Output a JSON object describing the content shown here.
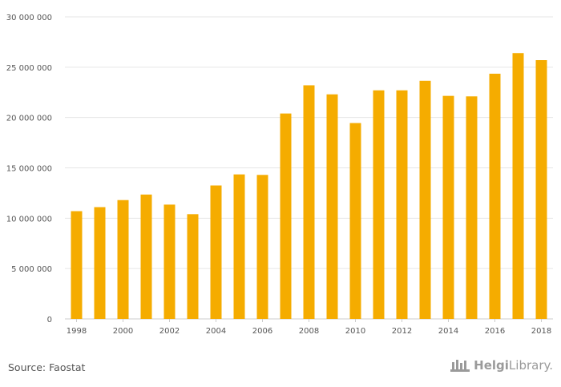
{
  "chart_data": {
    "type": "bar",
    "categories": [
      "1998",
      "1999",
      "2000",
      "2001",
      "2002",
      "2003",
      "2004",
      "2005",
      "2006",
      "2007",
      "2008",
      "2009",
      "2010",
      "2011",
      "2012",
      "2013",
      "2014",
      "2015",
      "2016",
      "2017",
      "2018"
    ],
    "values": [
      10700000,
      11100000,
      11800000,
      12350000,
      11350000,
      10400000,
      13250000,
      14350000,
      14300000,
      20400000,
      23200000,
      22300000,
      19450000,
      22700000,
      22700000,
      23650000,
      22150000,
      22100000,
      24350000,
      26400000,
      25700000
    ],
    "x_tick_labels": [
      "1998",
      "2000",
      "2002",
      "2004",
      "2006",
      "2008",
      "2010",
      "2012",
      "2014",
      "2016",
      "2018"
    ],
    "y_ticks": [
      0,
      5000000,
      10000000,
      15000000,
      20000000,
      25000000,
      30000000
    ],
    "y_tick_labels": [
      "0",
      "5 000 000",
      "10 000 000",
      "15 000 000",
      "20 000 000",
      "25 000 000",
      "30 000 000"
    ],
    "ylim": [
      0,
      30000000
    ],
    "grid": true,
    "bar_color": "#f5ac00",
    "title": "",
    "xlabel": "",
    "ylabel": ""
  },
  "footer": {
    "source": "Source: Faostat",
    "brand_bold": "Helgi",
    "brand_rest": "Library."
  },
  "icons": {
    "brand_logo": "helgi-library-logo-icon"
  }
}
